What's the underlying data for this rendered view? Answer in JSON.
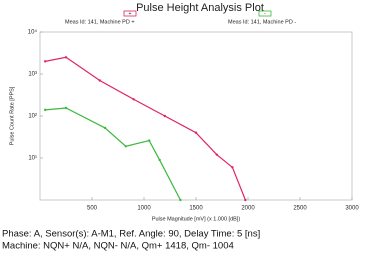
{
  "chart_data": {
    "type": "line",
    "title": "Pulse Height Analysis Plot",
    "xlabel": "Pulse Magnitude [mV] (x 1.000 [dB])",
    "ylabel": "Pulse Count Rate [PPS]",
    "log_y": true,
    "xlim": [
      0,
      3000
    ],
    "xticks": [
      500,
      1000,
      1500,
      2000,
      2500,
      3000
    ],
    "ylim": [
      1,
      10000
    ],
    "yticks": [
      {
        "value": 10,
        "label": "10¹"
      },
      {
        "value": 100,
        "label": "10²"
      },
      {
        "value": 1000,
        "label": "10³"
      },
      {
        "value": 10000,
        "label": "10⁴"
      }
    ],
    "series": [
      {
        "name": "Meas Id: 141, Machine PD +",
        "marker_label": "+",
        "color": "#e0245e",
        "x": [
          50,
          250,
          575,
          900,
          1200,
          1500,
          1700,
          1850,
          1975
        ],
        "values": [
          2000,
          2500,
          700,
          250,
          100,
          40,
          12,
          6,
          1
        ]
      },
      {
        "name": "Meas Id: 141, Machine PD -",
        "marker_label": "-",
        "color": "#3cb83c",
        "x": [
          50,
          250,
          625,
          825,
          1050,
          1150,
          1350
        ],
        "values": [
          140,
          155,
          52,
          19,
          26,
          9,
          1
        ]
      }
    ],
    "caption": [
      "Phase: A,   Sensor(s): A-M1,   Ref. Angle: 90,   Delay Time: 5 [ns]",
      "Machine:  NQN+ N/A, NQN- N/A, Qm+ 1418, Qm- 1004"
    ]
  }
}
